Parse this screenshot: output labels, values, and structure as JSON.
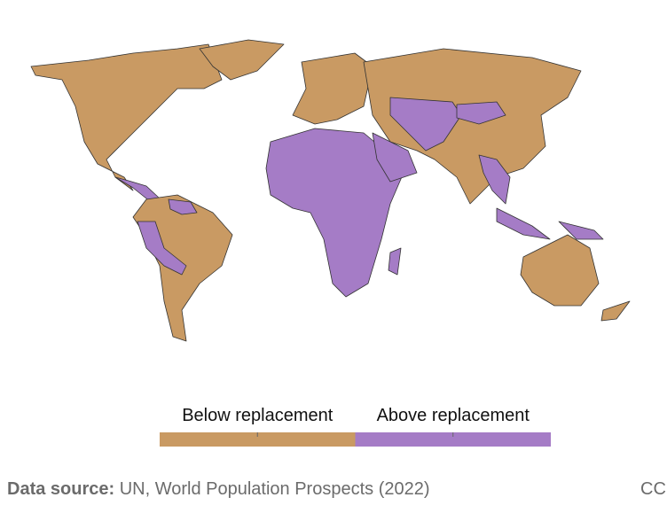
{
  "legend": {
    "items": [
      {
        "label": "Below replacement",
        "color": "#c99a63"
      },
      {
        "label": "Above replacement",
        "color": "#a57cc6"
      }
    ]
  },
  "source": {
    "label": "Data source:",
    "text": "UN, World Population Prospects (2022)"
  },
  "license": "CC"
}
